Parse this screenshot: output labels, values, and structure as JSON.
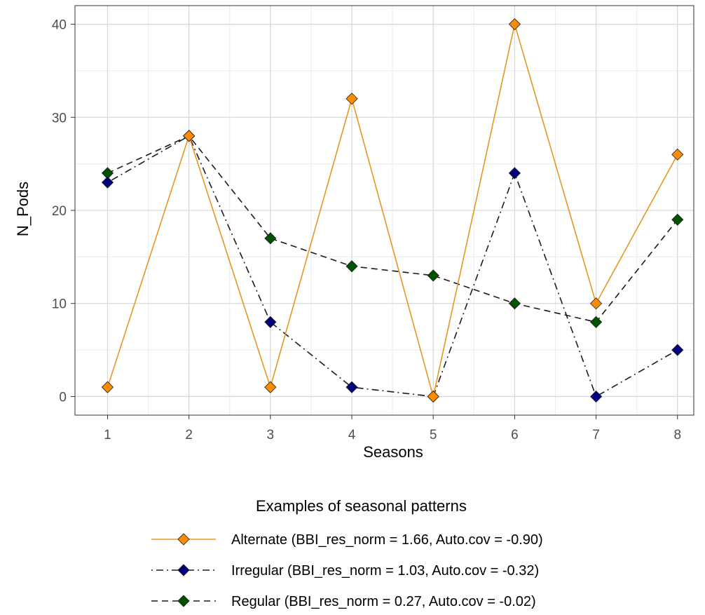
{
  "chart_data": {
    "type": "line",
    "title": "",
    "xlabel": "Seasons",
    "ylabel": "N_Pods",
    "x": [
      1,
      2,
      3,
      4,
      5,
      6,
      7,
      8
    ],
    "xlim": [
      0.6,
      8.2
    ],
    "ylim": [
      -2,
      42
    ],
    "x_ticks": [
      1,
      2,
      3,
      4,
      5,
      6,
      7,
      8
    ],
    "y_ticks": [
      0,
      10,
      20,
      30,
      40
    ],
    "grid": true,
    "legend": {
      "title": "Examples of seasonal patterns",
      "position": "bottom"
    },
    "series": [
      {
        "name": "Alternate (BBI_res_norm = 1.66, Auto.cov = -0.90)",
        "values": [
          1,
          28,
          1,
          32,
          0,
          40,
          10,
          26
        ],
        "color": "#E8951F",
        "marker_color": "#FF8C00",
        "line_style": "solid"
      },
      {
        "name": "Irregular (BBI_res_norm = 1.03, Auto.cov = -0.32)",
        "values": [
          23,
          28,
          8,
          1,
          0,
          24,
          0,
          5
        ],
        "color": "#1a1a2e",
        "marker_color": "#00007A",
        "line_style": "dotdash"
      },
      {
        "name": "Regular (BBI_res_norm = 0.27, Auto.cov = -0.02)",
        "values": [
          24,
          28,
          17,
          14,
          13,
          10,
          8,
          19
        ],
        "color": "#1a1a1a",
        "marker_color": "#005200",
        "line_style": "dashed"
      }
    ]
  }
}
